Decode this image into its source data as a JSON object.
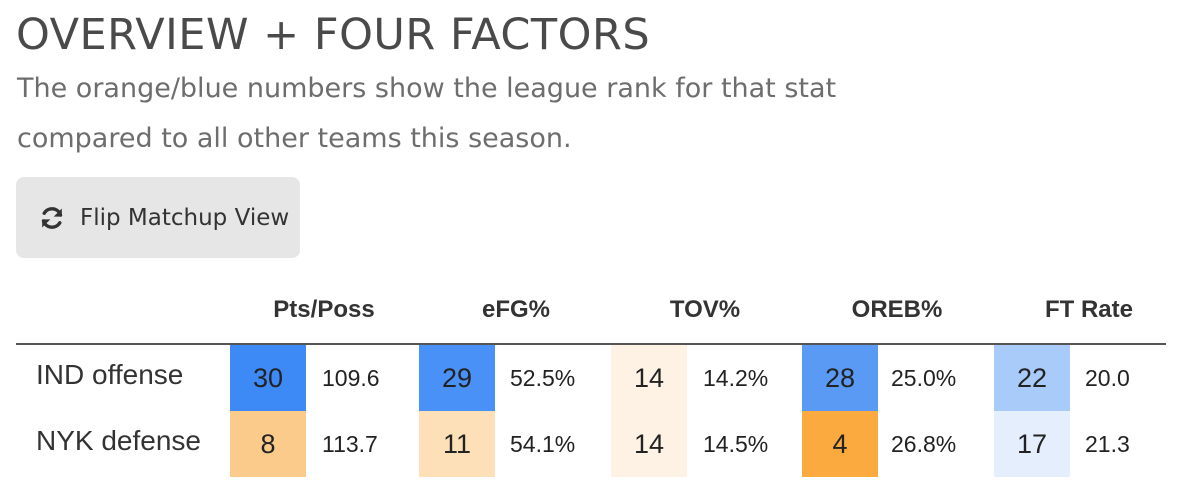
{
  "header": {
    "title": "OVERVIEW + FOUR FACTORS",
    "subtitle": "The orange/blue numbers show the league rank for that stat compared to all other teams this season."
  },
  "flip_button": {
    "label": "Flip Matchup View",
    "icon": "refresh-icon"
  },
  "table": {
    "columns": [
      "Pts/Poss",
      "eFG%",
      "TOV%",
      "OREB%",
      "FT Rate"
    ],
    "rows": [
      {
        "label": "IND offense",
        "cells": [
          {
            "rank": "30",
            "value": "109.6",
            "color": "#3d8af7"
          },
          {
            "rank": "29",
            "value": "52.5%",
            "color": "#4a91f7"
          },
          {
            "rank": "14",
            "value": "14.2%",
            "color": "#fdf2e4"
          },
          {
            "rank": "28",
            "value": "25.0%",
            "color": "#5a9af5"
          },
          {
            "rank": "22",
            "value": "20.0",
            "color": "#a9cbfa"
          }
        ]
      },
      {
        "label": "NYK defense",
        "cells": [
          {
            "rank": "8",
            "value": "113.7",
            "color": "#fbcb8c"
          },
          {
            "rank": "11",
            "value": "54.1%",
            "color": "#fde0b8"
          },
          {
            "rank": "14",
            "value": "14.5%",
            "color": "#fdf2e4"
          },
          {
            "rank": "4",
            "value": "26.8%",
            "color": "#fbaa40"
          },
          {
            "rank": "17",
            "value": "21.3",
            "color": "#e4eefd"
          }
        ]
      }
    ]
  }
}
